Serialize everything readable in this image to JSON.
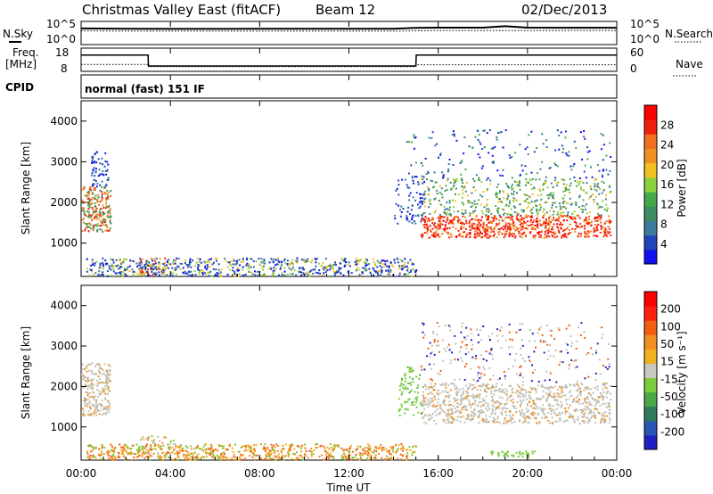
{
  "header": {
    "title": "Christmas Valley East (fitACF)",
    "beam": "Beam 12",
    "date": "02/Dec/2013"
  },
  "strip_labels": {
    "nsky": "N.Sky",
    "nsearch": "N.Search",
    "freq_line1": "Freq.",
    "freq_line2": "[MHz]",
    "nave": "Nave",
    "cpid": "CPID",
    "cpid_text": "normal (fast) 151 IF"
  },
  "colors": {
    "power_scale": [
      "#1010ee",
      "#2244bb",
      "#3a7a9a",
      "#3e8c62",
      "#44a84a",
      "#8dd040",
      "#f0c020",
      "#f09020",
      "#f07020",
      "#ef2010",
      "#ff0000"
    ],
    "velocity_scale": [
      "#2020c0",
      "#2a55b0",
      "#2f7a5a",
      "#4aa84a",
      "#7acc3a",
      "#c8c8c0",
      "#f0b020",
      "#f09020",
      "#f06010",
      "#ff2010",
      "#ff0000"
    ],
    "ground_scatter": "#c0c0b8"
  },
  "chart_data": [
    {
      "type": "line",
      "name": "N.Sky / N.Search",
      "x": [
        "00:00",
        "02:00",
        "04:00",
        "06:00",
        "08:00",
        "10:00",
        "12:00",
        "14:00",
        "15:00",
        "16:00",
        "18:00",
        "19:00",
        "20:00",
        "22:00",
        "24:00"
      ],
      "series": [
        {
          "name": "N.Sky",
          "values": [
            3000,
            2600,
            2400,
            2400,
            2500,
            2500,
            2500,
            2600,
            4000,
            4500,
            4600,
            9000,
            4500,
            4300,
            4300
          ]
        },
        {
          "name": "N.Search",
          "values": [
            900,
            800,
            800,
            800,
            800,
            800,
            800,
            800,
            900,
            1100,
            1100,
            1100,
            1100,
            1100,
            1100
          ]
        }
      ],
      "left_ticks": [
        "10^5",
        "10^0"
      ],
      "right_ticks": [
        "10^5",
        "10^0"
      ],
      "yscale": "log"
    },
    {
      "type": "line",
      "name": "Freq / Nave",
      "x": [
        "00:00",
        "03:00",
        "03:01",
        "15:00",
        "15:01",
        "24:00"
      ],
      "series": [
        {
          "name": "Freq.",
          "values": [
            15.0,
            15.0,
            10.3,
            10.3,
            15.0,
            15.0
          ]
        },
        {
          "name": "Nave",
          "values": [
            18,
            18,
            12,
            12,
            17,
            17
          ]
        }
      ],
      "left_ticks": [
        "18",
        "8"
      ],
      "right_ticks": [
        "60",
        "0"
      ]
    },
    {
      "type": "heatmap",
      "title": "Power",
      "ylabel": "Slant Range [km]",
      "xlim": [
        "00:00",
        "24:00"
      ],
      "ylim": [
        180,
        4500
      ],
      "y_ticks": [
        1000,
        2000,
        3000,
        4000
      ],
      "colorbar_label": "Power [dB]",
      "colorbar_ticks": [
        4,
        8,
        12,
        16,
        20,
        24,
        28
      ],
      "colorbar_range": [
        0,
        30
      ]
    },
    {
      "type": "heatmap",
      "title": "Velocity",
      "ylabel": "Slant Range [km]",
      "xlabel": "Time UT",
      "x_ticks": [
        "00:00",
        "04:00",
        "08:00",
        "12:00",
        "16:00",
        "20:00",
        "00:00"
      ],
      "xlim": [
        "00:00",
        "24:00"
      ],
      "ylim": [
        180,
        4500
      ],
      "y_ticks": [
        1000,
        2000,
        3000,
        4000
      ],
      "colorbar_label": "Velocity [m s⁻¹]",
      "colorbar_ticks": [
        200,
        100,
        50,
        15,
        -15,
        -50,
        -100,
        -200
      ]
    }
  ]
}
